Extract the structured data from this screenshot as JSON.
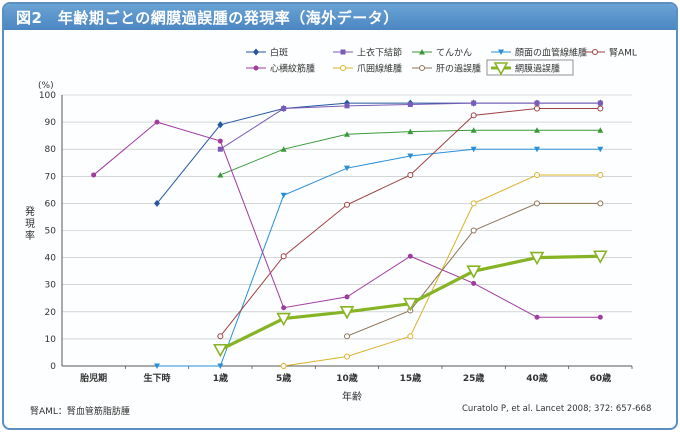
{
  "header": {
    "title": "図2　年齢期ごとの網膜過誤腫の発現率（海外データ）"
  },
  "footer": {
    "note": "腎AML：腎血管筋脂肪腫",
    "citation": "Curatolo P, et al. Lancet 2008; 372: 657-668"
  },
  "colors": {
    "banner": "#5a93c9",
    "axis": "#555555",
    "grid": "#bdbdbd"
  },
  "chart_data": {
    "type": "line",
    "title": "",
    "xlabel": "年齢",
    "ylabel": "発現率",
    "yunit": "(%)",
    "ylim": [
      0,
      100
    ],
    "yticks": [
      0,
      10,
      20,
      30,
      40,
      50,
      60,
      70,
      80,
      90,
      100
    ],
    "grid": true,
    "legend_position": "top",
    "categories": [
      "胎児期",
      "生下時",
      "1歳",
      "5歳",
      "10歳",
      "15歳",
      "25歳",
      "40歳",
      "60歳"
    ],
    "series": [
      {
        "name": "白斑",
        "color": "#2457a0",
        "marker": "diamond",
        "values": [
          null,
          60,
          89,
          95,
          97,
          97,
          97,
          97,
          97
        ]
      },
      {
        "name": "上衣下結節",
        "color": "#7a5bb8",
        "marker": "square",
        "values": [
          null,
          null,
          80,
          95,
          96,
          96.5,
          97,
          97,
          97
        ]
      },
      {
        "name": "てんかん",
        "color": "#3a9a3a",
        "marker": "triangle",
        "values": [
          null,
          null,
          70.5,
          80,
          85.5,
          86.5,
          87,
          87,
          87
        ]
      },
      {
        "name": "顔面の血管線維腫",
        "color": "#2a8fd8",
        "marker": "triangle-down",
        "values": [
          null,
          0,
          0,
          63,
          73,
          77.5,
          80,
          80,
          80
        ]
      },
      {
        "name": "腎AML",
        "color": "#a04040",
        "marker": "circle-open",
        "values": [
          null,
          null,
          11,
          40.5,
          59.5,
          70.5,
          92.5,
          95,
          95
        ]
      },
      {
        "name": "心横紋筋腫",
        "color": "#a03ca0",
        "marker": "circle",
        "values": [
          70.5,
          90,
          83,
          21.5,
          25.5,
          40.5,
          30.5,
          18,
          18
        ]
      },
      {
        "name": "爪囲線維腫",
        "color": "#d9b32a",
        "marker": "circle-open",
        "values": [
          null,
          null,
          null,
          0,
          3.5,
          11,
          60,
          70.5,
          70.5
        ]
      },
      {
        "name": "肝の過誤腫",
        "color": "#8c7456",
        "marker": "circle-open",
        "values": [
          null,
          null,
          null,
          null,
          11,
          20.5,
          50,
          60,
          60
        ]
      },
      {
        "name": "網膜過誤腫",
        "color": "#86b424",
        "marker": "triangle-down-open",
        "highlight": true,
        "values": [
          null,
          null,
          6,
          17.5,
          20,
          23,
          35,
          40,
          40.5
        ]
      }
    ]
  }
}
